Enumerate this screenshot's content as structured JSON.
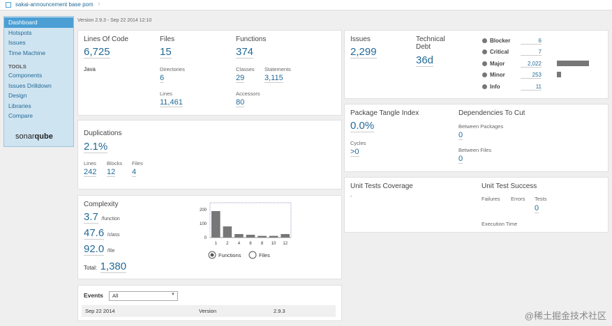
{
  "topbar": {
    "breadcrumb": "sakai-announcement base pom"
  },
  "sidebar": {
    "items": [
      "Dashboard",
      "Hotspots",
      "Issues",
      "Time Machine"
    ],
    "tools_heading": "TOOLS",
    "tools": [
      "Components",
      "Issues Drilldown",
      "Design",
      "Libraries",
      "Compare"
    ],
    "logo_a": "sonar",
    "logo_b": "qube"
  },
  "version_line": "Version 2.9.3 - Sep 22 2014 12:10",
  "size": {
    "loc_label": "Lines Of Code",
    "loc_value": "6,725",
    "language": "Java",
    "files_label": "Files",
    "files_value": "15",
    "dirs_label": "Directories",
    "dirs_value": "6",
    "lines_label": "Lines",
    "lines_value": "11,461",
    "functions_label": "Functions",
    "functions_value": "374",
    "classes_label": "Classes",
    "classes_value": "29",
    "statements_label": "Statements",
    "statements_value": "3,115",
    "accessors_label": "Accessors",
    "accessors_value": "80"
  },
  "duplications": {
    "title": "Duplications",
    "value": "2.1%",
    "lines_label": "Lines",
    "lines_value": "242",
    "blocks_label": "Blocks",
    "blocks_value": "12",
    "files_label": "Files",
    "files_value": "4"
  },
  "complexity": {
    "title": "Complexity",
    "per_function": "3.7",
    "per_function_unit": "/function",
    "per_class": "47.6",
    "per_class_unit": "/class",
    "per_file": "92.0",
    "per_file_unit": "/file",
    "total_label": "Total:",
    "total_value": "1,380",
    "radio_functions": "Functions",
    "radio_files": "Files"
  },
  "chart_data": {
    "type": "bar",
    "categories": [
      "1",
      "2",
      "4",
      "6",
      "8",
      "10",
      "12"
    ],
    "values": [
      190,
      80,
      25,
      20,
      12,
      12,
      25
    ],
    "ylim": [
      0,
      230
    ],
    "yticks": [
      "200",
      "100",
      "0"
    ],
    "title": "",
    "xlabel": "",
    "ylabel": ""
  },
  "events": {
    "title": "Events",
    "filter": "All",
    "rows": [
      {
        "date": "Sep 22 2014",
        "type": "Version",
        "value": "2.9.3"
      }
    ]
  },
  "issues": {
    "label": "Issues",
    "value": "2,299",
    "debt_label_1": "Technical",
    "debt_label_2": "Debt",
    "debt_value": "36d",
    "severities": [
      {
        "name": "Blocker",
        "count": "6",
        "ratio": 0.003
      },
      {
        "name": "Critical",
        "count": "7",
        "ratio": 0.003
      },
      {
        "name": "Major",
        "count": "2,022",
        "ratio": 1.0
      },
      {
        "name": "Minor",
        "count": "253",
        "ratio": 0.125
      },
      {
        "name": "Info",
        "count": "11",
        "ratio": 0.005
      }
    ]
  },
  "tangle": {
    "title": "Package Tangle Index",
    "value": "0.0%",
    "cycles_label": "Cycles",
    "cycles_value": ">0",
    "deps_title": "Dependencies To Cut",
    "between_packages_label": "Between Packages",
    "between_packages_value": "0",
    "between_files_label": "Between Files",
    "between_files_value": "0"
  },
  "tests": {
    "coverage_title": "Unit Tests Coverage",
    "coverage_value": "-",
    "success_title": "Unit Test Success",
    "failures_label": "Failures",
    "errors_label": "Errors",
    "tests_label": "Tests",
    "tests_value": "0",
    "exec_label": "Execution Time"
  },
  "watermark": "@稀土掘金技术社区"
}
